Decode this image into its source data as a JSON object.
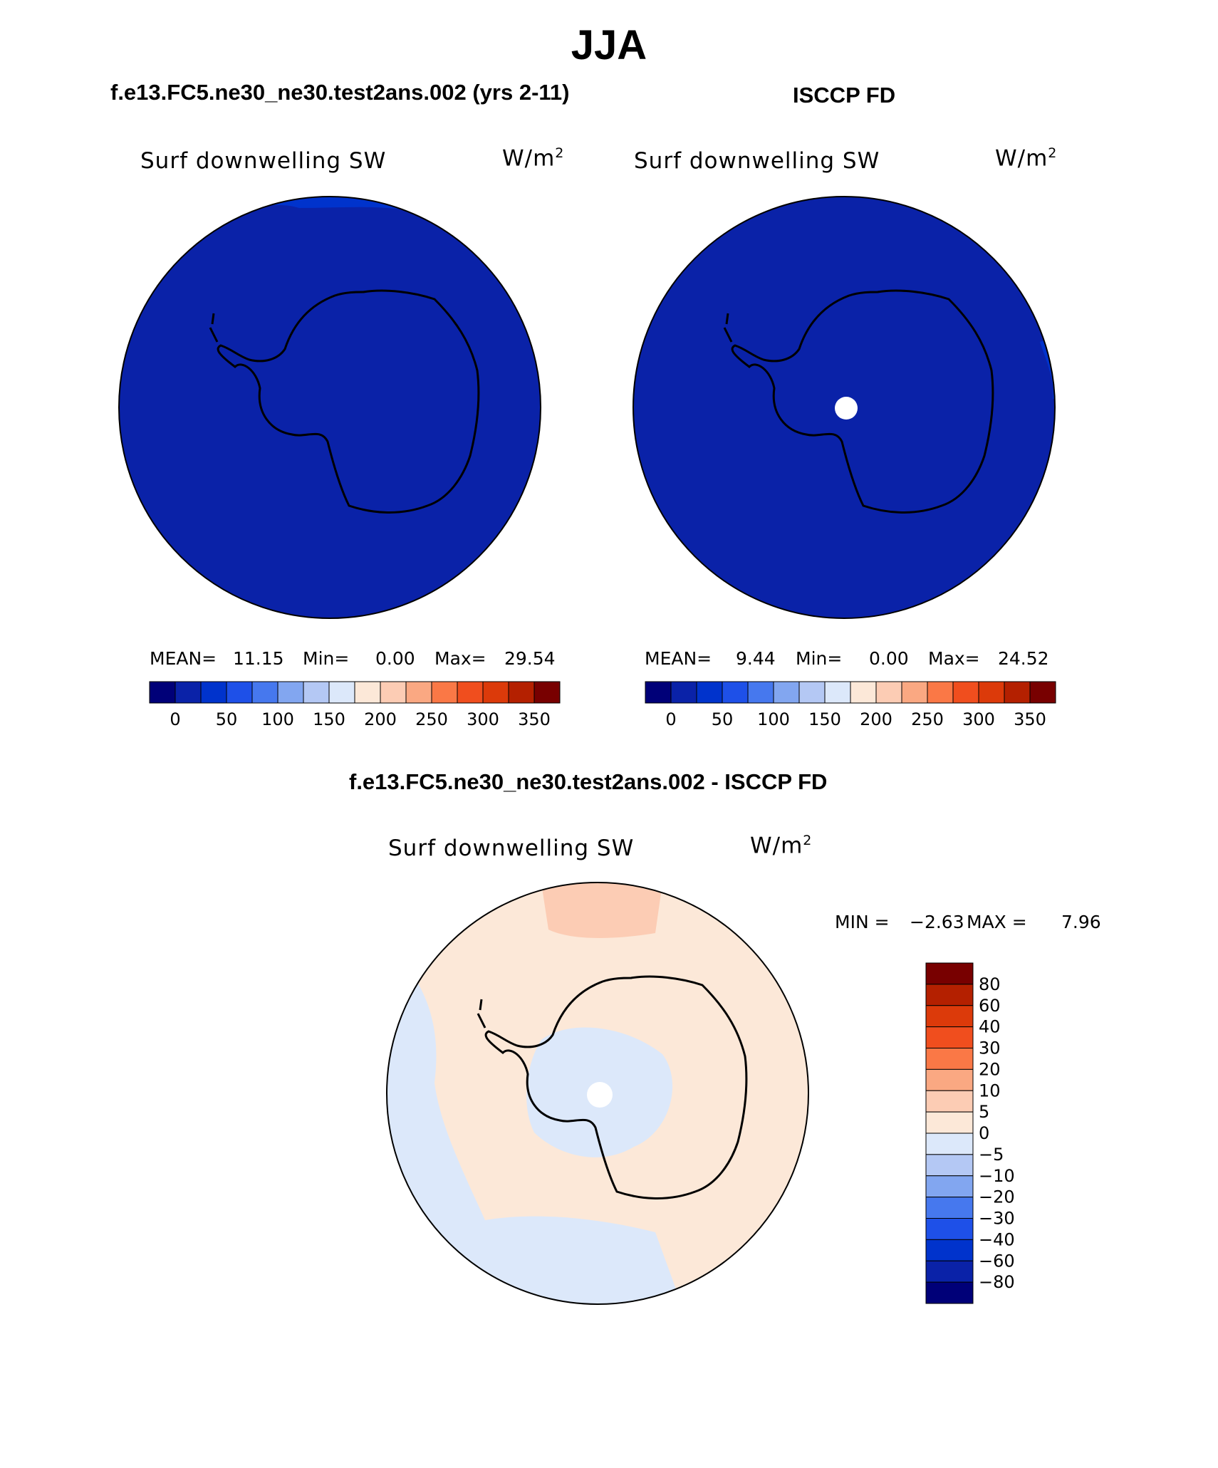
{
  "title": "JJA",
  "panels": {
    "model": {
      "case_title": "f.e13.FC5.ne30_ne30.test2ans.002 (yrs 2-11)",
      "variable": "Surf downwelling SW",
      "units_base": "W/m",
      "units_exp": "2",
      "mean_label": "MEAN=",
      "mean_value": "11.15",
      "min_label": "Min=",
      "min_value": "0.00",
      "max_label": "Max=",
      "max_value": "29.54"
    },
    "obs": {
      "case_title": "ISCCP FD",
      "variable": "Surf downwelling SW",
      "units_base": "W/m",
      "units_exp": "2",
      "mean_label": "MEAN=",
      "mean_value": "9.44",
      "min_label": "Min=",
      "min_value": "0.00",
      "max_label": "Max=",
      "max_value": "24.52"
    },
    "diff": {
      "case_title": "f.e13.FC5.ne30_ne30.test2ans.002 - ISCCP FD",
      "variable": "Surf downwelling SW",
      "units_base": "W/m",
      "units_exp": "2",
      "min_label": "MIN =",
      "min_value": "−2.63",
      "max_label": "MAX =",
      "max_value": "7.96"
    }
  },
  "colorbars": {
    "abs_colors": [
      "#000078",
      "#0A22A8",
      "#0033CC",
      "#1E50E8",
      "#4678EE",
      "#82A6F0",
      "#B4C8F4",
      "#DCE8FA",
      "#FCE8D8",
      "#FCCCB4",
      "#FAA882",
      "#FA7846",
      "#F04E1E",
      "#DC3A0A",
      "#B42000",
      "#780000"
    ],
    "abs_tick_labels": [
      "0",
      "50",
      "100",
      "150",
      "200",
      "250",
      "300",
      "350"
    ],
    "diff_colors": [
      "#000078",
      "#0A22A8",
      "#0033CC",
      "#1E50E8",
      "#4678EE",
      "#82A6F0",
      "#B4C8F4",
      "#DCE8FA",
      "#FCE8D8",
      "#FCCCB4",
      "#FAA882",
      "#FA7846",
      "#F04E1E",
      "#DC3A0A",
      "#B42000",
      "#780000"
    ],
    "diff_tick_labels": [
      "80",
      "60",
      "40",
      "30",
      "20",
      "10",
      "5",
      "0",
      "−5",
      "−10",
      "−20",
      "−30",
      "−40",
      "−60",
      "−80"
    ]
  },
  "map_colors": {
    "model_base": "#0A22A8",
    "model_patch": "#0033CC",
    "obs_base": "#0A22A8",
    "obs_patch": "#0033CC",
    "diff_base": "#FCE8D8",
    "diff_pos": "#FCCCB4",
    "diff_neg": "#DCE8FA"
  }
}
